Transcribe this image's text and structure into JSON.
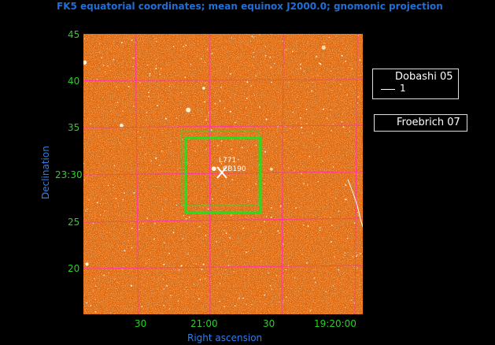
{
  "header": {
    "title": "FK5 equatorial coordinates; mean equinox J2000.0; gnomonic projection"
  },
  "axes": {
    "xlabel": "Right ascension",
    "ylabel": "Declination",
    "y_ticks": [
      "45",
      "40",
      "35",
      "23:30",
      "25",
      "20"
    ],
    "x_ticks": [
      "30",
      "21:00",
      "30",
      "19:20:00"
    ]
  },
  "plot": {
    "background_color": "#e06a10",
    "grid_color": "#ff3aa0",
    "box_color": "#20e020",
    "marker_color": "#ffffff",
    "labels": {
      "cloud_a": "L771",
      "cloud_b": "CB190"
    }
  },
  "legend": {
    "dobashi": {
      "name": "Dobashi 05",
      "entry": "1"
    },
    "froebrich": {
      "name": "Froebrich 07"
    }
  }
}
